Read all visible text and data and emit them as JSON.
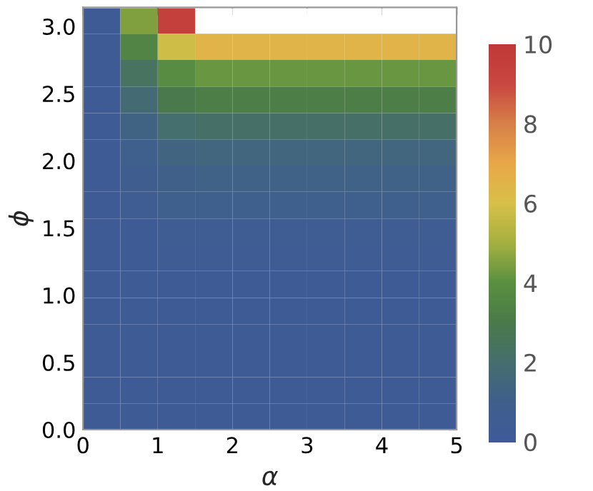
{
  "chart_data": {
    "type": "heatmap",
    "xlabel": "α",
    "ylabel": "ϕ",
    "x": [
      0.25,
      0.75,
      1.25,
      1.75,
      2.25,
      2.75,
      3.25,
      3.75,
      4.25,
      4.75
    ],
    "y": [
      3.04,
      2.85,
      2.65,
      2.45,
      2.26,
      2.06,
      1.87,
      1.67,
      1.47,
      1.28,
      1.08,
      0.88,
      0.69,
      0.49,
      0.29,
      0.1
    ],
    "cells": [
      [
        0.3,
        4.5,
        9.5,
        null,
        null,
        null,
        null,
        null,
        null,
        null
      ],
      [
        0.3,
        3.5,
        5.8,
        6.5,
        6.5,
        6.5,
        6.5,
        6.5,
        6.5,
        6.5
      ],
      [
        0.3,
        2.4,
        3.8,
        4.2,
        4.2,
        4.2,
        4.2,
        4.2,
        4.2,
        4.2
      ],
      [
        0.3,
        1.8,
        2.9,
        3.2,
        3.2,
        3.2,
        3.2,
        3.2,
        3.2,
        3.2
      ],
      [
        0.3,
        1.3,
        2.0,
        2.2,
        2.2,
        2.2,
        2.2,
        2.2,
        2.2,
        2.2
      ],
      [
        0.3,
        1.0,
        1.4,
        1.5,
        1.5,
        1.5,
        1.5,
        1.5,
        1.5,
        1.5
      ],
      [
        0.3,
        0.8,
        1.1,
        1.2,
        1.2,
        1.2,
        1.2,
        1.2,
        1.2,
        1.2
      ],
      [
        0.3,
        0.6,
        0.9,
        1.0,
        1.0,
        1.0,
        1.0,
        1.0,
        1.0,
        1.0
      ],
      [
        0.3,
        0.3,
        0.5,
        0.5,
        0.5,
        0.5,
        0.5,
        0.5,
        0.5,
        0.5
      ],
      [
        0.3,
        0.3,
        0.4,
        0.4,
        0.4,
        0.4,
        0.4,
        0.4,
        0.4,
        0.4
      ],
      [
        0.3,
        0.3,
        0.3,
        0.3,
        0.3,
        0.3,
        0.3,
        0.3,
        0.3,
        0.3
      ],
      [
        0.3,
        0.3,
        0.3,
        0.3,
        0.3,
        0.3,
        0.3,
        0.3,
        0.3,
        0.3
      ],
      [
        0.3,
        0.3,
        0.3,
        0.3,
        0.3,
        0.3,
        0.3,
        0.3,
        0.3,
        0.3
      ],
      [
        0.3,
        0.3,
        0.3,
        0.3,
        0.3,
        0.3,
        0.3,
        0.3,
        0.3,
        0.3
      ],
      [
        0.3,
        0.3,
        0.3,
        0.3,
        0.3,
        0.3,
        0.3,
        0.3,
        0.3,
        0.3
      ],
      [
        0.3,
        0.3,
        0.3,
        0.3,
        0.3,
        0.3,
        0.3,
        0.3,
        0.3,
        0.3
      ]
    ],
    "colors": [
      "#3f5a9a",
      "#3f5f8c",
      "#456e6e",
      "#4a7a4a",
      "#5a9040",
      "#a5b040",
      "#d8c048",
      "#e8a848",
      "#d88048",
      "#c84840",
      "#c03838"
    ],
    "xlim": [
      0,
      5
    ],
    "xticks": [
      0,
      1,
      2,
      3,
      4,
      5
    ],
    "ylim": [
      0,
      3.1416
    ],
    "yticks": [
      {
        "value": 0,
        "label": "0.0"
      },
      {
        "value": 0.5,
        "label": "0.5"
      },
      {
        "value": 1,
        "label": "1.0"
      },
      {
        "value": 1.5,
        "label": "1.5"
      },
      {
        "value": 2,
        "label": "2.0"
      },
      {
        "value": 2.5,
        "label": "2.5"
      },
      {
        "value": 3,
        "label": "3.0"
      }
    ],
    "clim": [
      0,
      10
    ],
    "cticks": [
      0,
      2,
      4,
      6,
      8,
      10
    ]
  }
}
